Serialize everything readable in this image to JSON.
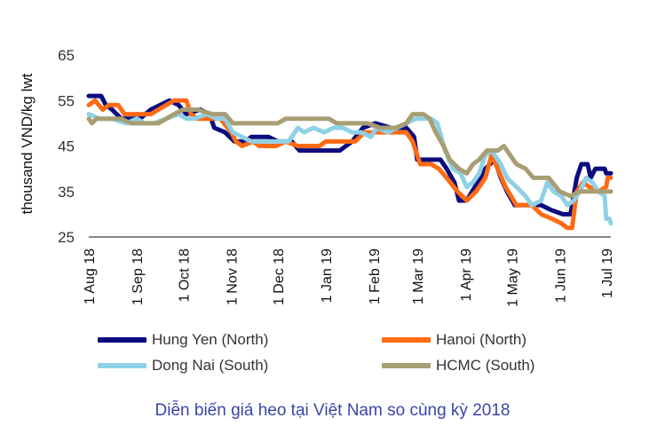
{
  "chart_data": {
    "type": "line",
    "ylabel": "thousand VND/kg lwt",
    "xlabel": "",
    "ylim": [
      25,
      65
    ],
    "yticks": [
      "25",
      "35",
      "45",
      "55",
      "65"
    ],
    "x_tick_labels": [
      "1 Aug 18",
      "1 Sep 18",
      "1 Oct 18",
      "1 Nov 18",
      "1 Dec 18",
      "1 Jan 19",
      "1 Feb 19",
      "1 Mar 19",
      "1 Apr 19",
      "1 May 19",
      "1 Jun 19",
      "1 Jul 19"
    ],
    "x_range": [
      "2018-08-01",
      "2019-07-04"
    ],
    "grid": false,
    "legend_position": "bottom",
    "series": [
      {
        "name": "Hung Yen (North)",
        "color": "#0b0c7e",
        "points": [
          [
            "2018-08-01",
            56
          ],
          [
            "2018-08-09",
            56
          ],
          [
            "2018-08-12",
            54
          ],
          [
            "2018-08-16",
            53
          ],
          [
            "2018-08-22",
            51
          ],
          [
            "2018-09-03",
            51
          ],
          [
            "2018-09-10",
            53
          ],
          [
            "2018-09-16",
            54
          ],
          [
            "2018-09-22",
            55
          ],
          [
            "2018-09-28",
            54
          ],
          [
            "2018-10-03",
            52
          ],
          [
            "2018-10-12",
            53
          ],
          [
            "2018-10-18",
            52
          ],
          [
            "2018-10-21",
            49
          ],
          [
            "2018-10-28",
            48
          ],
          [
            "2018-11-03",
            46
          ],
          [
            "2018-11-10",
            46
          ],
          [
            "2018-11-14",
            47
          ],
          [
            "2018-11-25",
            47
          ],
          [
            "2018-12-01",
            46
          ],
          [
            "2018-12-10",
            46
          ],
          [
            "2018-12-15",
            44
          ],
          [
            "2018-12-28",
            44
          ],
          [
            "2019-01-05",
            44
          ],
          [
            "2019-01-10",
            44
          ],
          [
            "2019-01-18",
            46
          ],
          [
            "2019-01-25",
            49
          ],
          [
            "2019-02-02",
            50
          ],
          [
            "2019-02-12",
            49
          ],
          [
            "2019-02-22",
            49
          ],
          [
            "2019-02-27",
            47
          ],
          [
            "2019-03-01",
            42
          ],
          [
            "2019-03-08",
            42
          ],
          [
            "2019-03-16",
            42
          ],
          [
            "2019-03-20",
            40
          ],
          [
            "2019-03-25",
            37
          ],
          [
            "2019-03-28",
            33
          ],
          [
            "2019-04-02",
            33
          ],
          [
            "2019-04-09",
            37
          ],
          [
            "2019-04-14",
            40
          ],
          [
            "2019-04-20",
            42
          ],
          [
            "2019-04-24",
            38
          ],
          [
            "2019-04-28",
            35
          ],
          [
            "2019-05-03",
            32
          ],
          [
            "2019-05-15",
            32
          ],
          [
            "2019-05-20",
            32
          ],
          [
            "2019-05-26",
            31
          ],
          [
            "2019-06-03",
            30
          ],
          [
            "2019-06-08",
            30
          ],
          [
            "2019-06-12",
            38
          ],
          [
            "2019-06-15",
            41
          ],
          [
            "2019-06-19",
            41
          ],
          [
            "2019-06-21",
            38
          ],
          [
            "2019-06-24",
            40
          ],
          [
            "2019-06-30",
            40
          ],
          [
            "2019-07-01",
            39
          ],
          [
            "2019-07-04",
            39
          ]
        ]
      },
      {
        "name": "Hanoi (North)",
        "color": "#ff6a13",
        "points": [
          [
            "2018-08-01",
            54
          ],
          [
            "2018-08-05",
            55
          ],
          [
            "2018-08-10",
            53
          ],
          [
            "2018-08-14",
            54
          ],
          [
            "2018-08-20",
            54
          ],
          [
            "2018-08-24",
            52
          ],
          [
            "2018-09-01",
            52
          ],
          [
            "2018-09-10",
            52
          ],
          [
            "2018-09-15",
            53
          ],
          [
            "2018-09-20",
            54
          ],
          [
            "2018-09-25",
            55
          ],
          [
            "2018-10-03",
            55
          ],
          [
            "2018-10-06",
            52
          ],
          [
            "2018-10-10",
            51
          ],
          [
            "2018-10-25",
            51
          ],
          [
            "2018-11-01",
            48
          ],
          [
            "2018-11-04",
            46
          ],
          [
            "2018-11-08",
            45
          ],
          [
            "2018-11-15",
            46
          ],
          [
            "2018-11-19",
            45
          ],
          [
            "2018-11-30",
            45
          ],
          [
            "2018-12-06",
            46
          ],
          [
            "2018-12-14",
            45
          ],
          [
            "2018-12-20",
            45
          ],
          [
            "2018-12-28",
            45
          ],
          [
            "2019-01-01",
            46
          ],
          [
            "2019-01-10",
            46
          ],
          [
            "2019-01-20",
            46
          ],
          [
            "2019-01-26",
            48
          ],
          [
            "2019-02-01",
            48
          ],
          [
            "2019-02-15",
            48
          ],
          [
            "2019-02-22",
            48
          ],
          [
            "2019-02-26",
            46
          ],
          [
            "2019-03-03",
            41
          ],
          [
            "2019-03-10",
            41
          ],
          [
            "2019-03-15",
            40
          ],
          [
            "2019-03-20",
            38
          ],
          [
            "2019-03-27",
            35
          ],
          [
            "2019-04-02",
            33
          ],
          [
            "2019-04-08",
            35
          ],
          [
            "2019-04-14",
            38
          ],
          [
            "2019-04-18",
            43
          ],
          [
            "2019-04-22",
            40
          ],
          [
            "2019-04-27",
            36
          ],
          [
            "2019-05-04",
            32
          ],
          [
            "2019-05-14",
            32
          ],
          [
            "2019-05-20",
            30
          ],
          [
            "2019-05-27",
            29
          ],
          [
            "2019-06-02",
            28
          ],
          [
            "2019-06-06",
            27
          ],
          [
            "2019-06-09",
            27
          ],
          [
            "2019-06-12",
            35
          ],
          [
            "2019-06-16",
            37
          ],
          [
            "2019-06-20",
            36
          ],
          [
            "2019-06-26",
            35
          ],
          [
            "2019-07-01",
            36
          ],
          [
            "2019-07-02",
            38
          ],
          [
            "2019-07-04",
            38
          ]
        ]
      },
      {
        "name": "Dong Nai (South)",
        "color": "#8fd0e6",
        "points": [
          [
            "2018-08-01",
            52
          ],
          [
            "2018-08-08",
            51
          ],
          [
            "2018-08-16",
            51
          ],
          [
            "2018-08-25",
            50
          ],
          [
            "2018-09-01",
            51
          ],
          [
            "2018-09-06",
            50
          ],
          [
            "2018-09-12",
            50
          ],
          [
            "2018-09-20",
            51
          ],
          [
            "2018-09-28",
            52
          ],
          [
            "2018-10-03",
            51
          ],
          [
            "2018-10-08",
            51
          ],
          [
            "2018-10-16",
            52
          ],
          [
            "2018-10-23",
            51
          ],
          [
            "2018-10-28",
            51
          ],
          [
            "2018-11-02",
            48
          ],
          [
            "2018-11-08",
            47
          ],
          [
            "2018-11-14",
            46
          ],
          [
            "2018-11-22",
            46
          ],
          [
            "2018-12-01",
            46
          ],
          [
            "2018-12-08",
            46
          ],
          [
            "2018-12-14",
            49
          ],
          [
            "2018-12-18",
            48
          ],
          [
            "2018-12-24",
            49
          ],
          [
            "2018-12-31",
            48
          ],
          [
            "2019-01-06",
            49
          ],
          [
            "2019-01-12",
            49
          ],
          [
            "2019-01-18",
            48
          ],
          [
            "2019-01-24",
            48
          ],
          [
            "2019-01-30",
            47
          ],
          [
            "2019-02-03",
            49
          ],
          [
            "2019-02-10",
            48
          ],
          [
            "2019-02-16",
            49
          ],
          [
            "2019-02-22",
            50
          ],
          [
            "2019-02-28",
            51
          ],
          [
            "2019-03-06",
            51
          ],
          [
            "2019-03-10",
            51
          ],
          [
            "2019-03-14",
            50
          ],
          [
            "2019-03-19",
            44
          ],
          [
            "2019-03-24",
            40
          ],
          [
            "2019-03-29",
            39
          ],
          [
            "2019-04-02",
            36
          ],
          [
            "2019-04-06",
            37
          ],
          [
            "2019-04-10",
            39
          ],
          [
            "2019-04-14",
            43
          ],
          [
            "2019-04-18",
            44
          ],
          [
            "2019-04-24",
            41
          ],
          [
            "2019-04-28",
            38
          ],
          [
            "2019-05-04",
            36
          ],
          [
            "2019-05-10",
            34
          ],
          [
            "2019-05-14",
            32
          ],
          [
            "2019-05-20",
            33
          ],
          [
            "2019-05-24",
            37
          ],
          [
            "2019-05-28",
            35
          ],
          [
            "2019-06-02",
            34
          ],
          [
            "2019-06-06",
            32
          ],
          [
            "2019-06-10",
            33
          ],
          [
            "2019-06-14",
            35
          ],
          [
            "2019-06-18",
            38
          ],
          [
            "2019-06-22",
            37
          ],
          [
            "2019-06-26",
            35
          ],
          [
            "2019-06-30",
            34
          ],
          [
            "2019-07-01",
            29
          ],
          [
            "2019-07-03",
            29
          ],
          [
            "2019-07-04",
            28
          ]
        ]
      },
      {
        "name": "HCMC (South)",
        "color": "#a89e73",
        "points": [
          [
            "2018-08-01",
            51
          ],
          [
            "2018-08-03",
            50
          ],
          [
            "2018-08-06",
            51
          ],
          [
            "2018-08-15",
            51
          ],
          [
            "2018-08-22",
            51
          ],
          [
            "2018-08-28",
            50
          ],
          [
            "2018-09-05",
            50
          ],
          [
            "2018-09-15",
            50
          ],
          [
            "2018-09-20",
            51
          ],
          [
            "2018-09-25",
            52
          ],
          [
            "2018-10-01",
            53
          ],
          [
            "2018-10-10",
            53
          ],
          [
            "2018-10-20",
            52
          ],
          [
            "2018-10-28",
            52
          ],
          [
            "2018-11-02",
            50
          ],
          [
            "2018-11-12",
            50
          ],
          [
            "2018-11-22",
            50
          ],
          [
            "2018-12-01",
            50
          ],
          [
            "2018-12-06",
            51
          ],
          [
            "2018-12-15",
            51
          ],
          [
            "2018-12-25",
            51
          ],
          [
            "2019-01-03",
            51
          ],
          [
            "2019-01-08",
            50
          ],
          [
            "2019-01-18",
            50
          ],
          [
            "2019-01-28",
            50
          ],
          [
            "2019-02-05",
            49
          ],
          [
            "2019-02-15",
            49
          ],
          [
            "2019-02-22",
            50
          ],
          [
            "2019-02-26",
            52
          ],
          [
            "2019-03-05",
            52
          ],
          [
            "2019-03-09",
            51
          ],
          [
            "2019-03-13",
            48
          ],
          [
            "2019-03-18",
            45
          ],
          [
            "2019-03-22",
            42
          ],
          [
            "2019-03-28",
            40
          ],
          [
            "2019-04-02",
            39
          ],
          [
            "2019-04-06",
            41
          ],
          [
            "2019-04-10",
            42
          ],
          [
            "2019-04-15",
            44
          ],
          [
            "2019-04-22",
            44
          ],
          [
            "2019-04-26",
            45
          ],
          [
            "2019-04-30",
            43
          ],
          [
            "2019-05-04",
            41
          ],
          [
            "2019-05-10",
            40
          ],
          [
            "2019-05-15",
            38
          ],
          [
            "2019-05-25",
            38
          ],
          [
            "2019-06-01",
            35
          ],
          [
            "2019-06-08",
            34
          ],
          [
            "2019-06-14",
            35
          ],
          [
            "2019-06-20",
            35
          ],
          [
            "2019-06-28",
            35
          ],
          [
            "2019-07-04",
            35
          ]
        ]
      }
    ]
  },
  "caption": "Diễn biến giá heo tại Việt Nam so cùng kỳ 2018"
}
